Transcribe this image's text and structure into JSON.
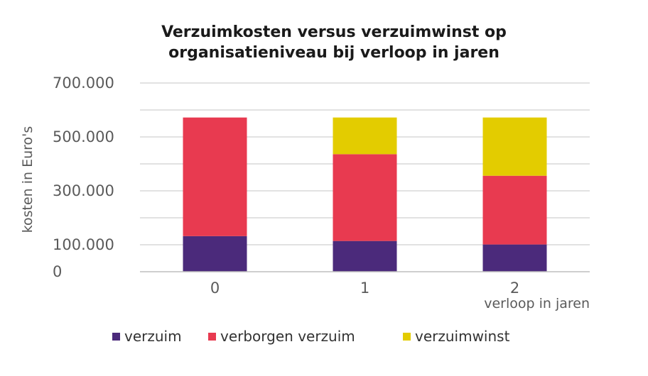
{
  "chart_data": {
    "type": "bar",
    "stacked": true,
    "title_lines": [
      "Verzuimkosten versus verzuimwinst op",
      "organisatieniveau bij verloop in jaren"
    ],
    "xlabel": "verloop in jaren",
    "ylabel": "kosten in Euro's",
    "categories": [
      "0",
      "1",
      "2"
    ],
    "ylim": [
      0,
      700000
    ],
    "y_ticks": [
      0,
      100000,
      300000,
      500000,
      700000
    ],
    "y_tick_labels": [
      "0",
      "100.000",
      "300.000",
      "500.000",
      "700.000"
    ],
    "gridlines": [
      100000,
      200000,
      300000,
      400000,
      500000,
      600000,
      700000
    ],
    "grid": true,
    "legend_position": "bottom",
    "series": [
      {
        "name": "verzuim",
        "color": "#4b2a7b",
        "values": [
          132000,
          114000,
          101000
        ]
      },
      {
        "name": "verborgen verzuim",
        "color": "#e83a50",
        "values": [
          440000,
          322000,
          255000
        ]
      },
      {
        "name": "verzuimwinst",
        "color": "#e3cc00",
        "values": [
          0,
          136000,
          216000
        ]
      }
    ]
  }
}
